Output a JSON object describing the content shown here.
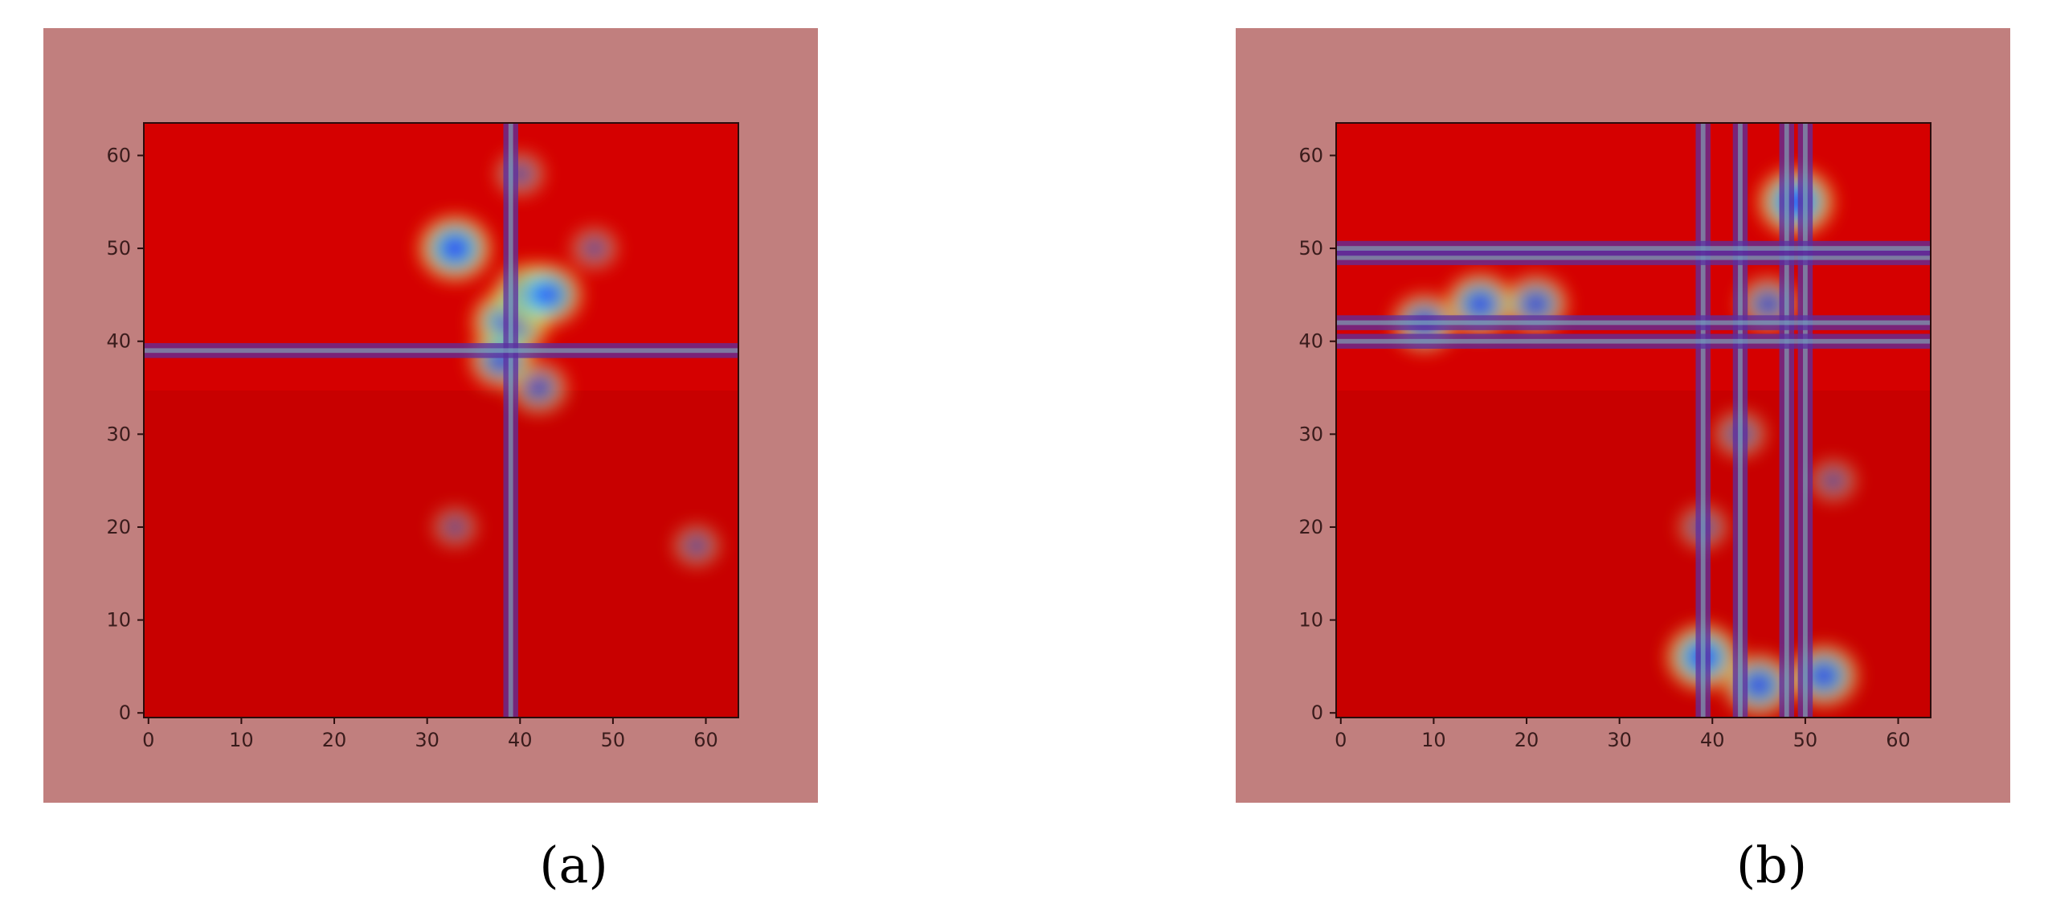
{
  "chart_data": [
    {
      "type": "heatmap",
      "caption": "(a)",
      "xlim": [
        -0.5,
        63.5
      ],
      "ylim": [
        -0.5,
        63.5
      ],
      "xticks": [
        0,
        10,
        20,
        30,
        40,
        50,
        60
      ],
      "yticks": [
        0,
        10,
        20,
        30,
        40,
        50,
        60
      ],
      "grid": false,
      "colormap": "jet overlay (red = low attention, blue = high attention)",
      "background_color": "#c17f7e",
      "cross_lines": {
        "x": [
          39
        ],
        "y": [
          39
        ]
      },
      "hotspots": [
        {
          "x": 33,
          "y": 50,
          "intensity": 0.9
        },
        {
          "x": 39,
          "y": 42,
          "intensity": 1.0
        },
        {
          "x": 41,
          "y": 45,
          "intensity": 0.85
        },
        {
          "x": 43,
          "y": 45,
          "intensity": 0.8
        },
        {
          "x": 42,
          "y": 35,
          "intensity": 0.55
        },
        {
          "x": 38,
          "y": 38,
          "intensity": 0.7
        },
        {
          "x": 40,
          "y": 58,
          "intensity": 0.35
        },
        {
          "x": 48,
          "y": 50,
          "intensity": 0.3
        },
        {
          "x": 33,
          "y": 20,
          "intensity": 0.25
        },
        {
          "x": 59,
          "y": 18,
          "intensity": 0.3
        }
      ]
    },
    {
      "type": "heatmap",
      "caption": "(b)",
      "xlim": [
        -0.5,
        63.5
      ],
      "ylim": [
        -0.5,
        63.5
      ],
      "xticks": [
        0,
        10,
        20,
        30,
        40,
        50,
        60
      ],
      "yticks": [
        0,
        10,
        20,
        30,
        40,
        50,
        60
      ],
      "grid": false,
      "colormap": "jet overlay (red = low attention, blue = high attention)",
      "background_color": "#c17f7e",
      "cross_lines": {
        "x": [
          39,
          43,
          48,
          50
        ],
        "y": [
          40,
          42,
          49,
          50
        ]
      },
      "hotspots": [
        {
          "x": 15,
          "y": 44,
          "intensity": 0.8
        },
        {
          "x": 9,
          "y": 42,
          "intensity": 0.7
        },
        {
          "x": 21,
          "y": 44,
          "intensity": 0.7
        },
        {
          "x": 49,
          "y": 55,
          "intensity": 0.95
        },
        {
          "x": 46,
          "y": 44,
          "intensity": 0.6
        },
        {
          "x": 39,
          "y": 6,
          "intensity": 0.9
        },
        {
          "x": 45,
          "y": 3,
          "intensity": 0.8
        },
        {
          "x": 52,
          "y": 4,
          "intensity": 0.8
        },
        {
          "x": 43,
          "y": 30,
          "intensity": 0.4
        },
        {
          "x": 53,
          "y": 25,
          "intensity": 0.3
        },
        {
          "x": 39,
          "y": 20,
          "intensity": 0.35
        }
      ]
    }
  ]
}
